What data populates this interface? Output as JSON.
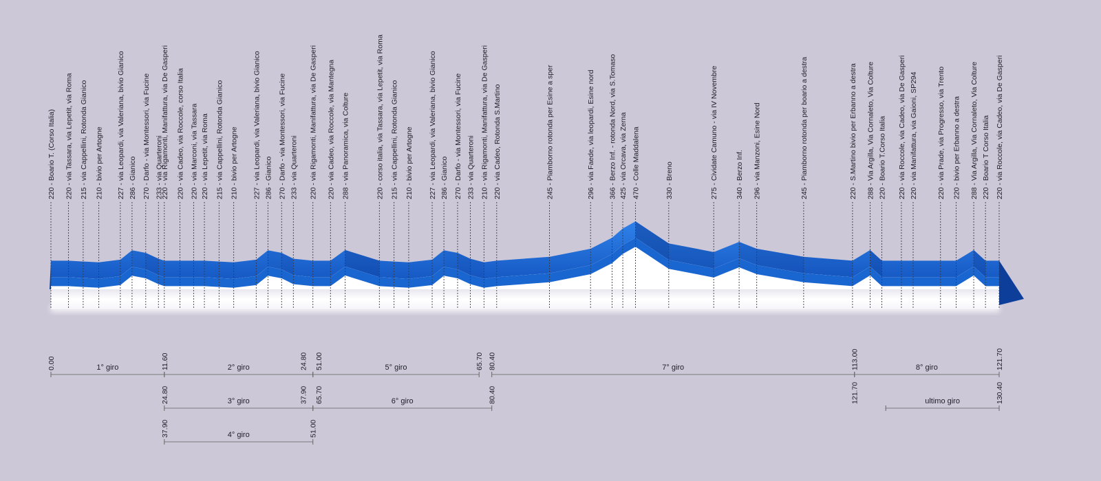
{
  "chart_data": {
    "type": "area",
    "elevation_unit": "m",
    "distance_unit": "km",
    "waypoints": [
      {
        "km": 0.0,
        "alt": 220,
        "label": "220 - Boario T. (Corso Italia)"
      },
      {
        "km": 1.8,
        "alt": 220,
        "label": "220 - via Tassara, via Lepetit, via Roma"
      },
      {
        "km": 3.3,
        "alt": 215,
        "label": "215 - via Cappellini, Rotonda Gianico"
      },
      {
        "km": 4.9,
        "alt": 210,
        "label": "210 - bivio per Artogne"
      },
      {
        "km": 7.1,
        "alt": 227,
        "label": "227 - via Leopardi, via Valeriana, bivio Gianico"
      },
      {
        "km": 8.3,
        "alt": 286,
        "label": "286 - Gianico"
      },
      {
        "km": 9.7,
        "alt": 270,
        "label": "270 - Darfo - via Montessori, via Fucine"
      },
      {
        "km": 11.0,
        "alt": 233,
        "label": "233 - via Quarteroni"
      },
      {
        "km": 11.6,
        "alt": 220,
        "label": "220 - via Rigamonti, Manifattura, via De Gasperi"
      },
      {
        "km": 13.2,
        "alt": 220,
        "label": "220 - via Cadeo, via Roccole, corso Italia"
      },
      {
        "km": 14.6,
        "alt": 220,
        "label": "220 - via Marconi, via Tassara"
      },
      {
        "km": 15.7,
        "alt": 220,
        "label": "220 - via Lepetit, via Roma"
      },
      {
        "km": 17.2,
        "alt": 215,
        "label": "215 - via Cappellini, Rotonda Gianico"
      },
      {
        "km": 18.7,
        "alt": 210,
        "label": "210 - bivio per Artogne"
      },
      {
        "km": 21.0,
        "alt": 227,
        "label": "227 - via Leopardi, via Valeriana, bivio Gianico"
      },
      {
        "km": 22.2,
        "alt": 286,
        "label": "286 - Gianico"
      },
      {
        "km": 23.6,
        "alt": 270,
        "label": "270 - Darfo - via Montessori, via Fucine"
      },
      {
        "km": 24.8,
        "alt": 233,
        "label": "233 - via Quarteroni"
      },
      {
        "km": 26.8,
        "alt": 220,
        "label": "220 - via Rigamonti, Manifattura, via De Gasperi"
      },
      {
        "km": 28.6,
        "alt": 220,
        "label": "220 - via Cadeo, via Roccole, via Mantegna"
      },
      {
        "km": 30.1,
        "alt": 288,
        "label": "288 - via Panoramica, via Colture"
      },
      {
        "km": 33.6,
        "alt": 220,
        "label": "220 - corso italia, via Tassara, via Lepetit, via Roma"
      },
      {
        "km": 35.1,
        "alt": 215,
        "label": "215 - via Cappellini, Rotonda Gianico"
      },
      {
        "km": 36.6,
        "alt": 210,
        "label": "210 - bivio per Artogne"
      },
      {
        "km": 39.0,
        "alt": 227,
        "label": "227 - via Leopardi, via Valeriana, bivio Gianico"
      },
      {
        "km": 40.2,
        "alt": 286,
        "label": "286 - Gianico"
      },
      {
        "km": 41.6,
        "alt": 270,
        "label": "270 - Darfo - via Montessori, via Fucine"
      },
      {
        "km": 42.9,
        "alt": 233,
        "label": "233 - via Quarteroni"
      },
      {
        "km": 44.3,
        "alt": 210,
        "label": "210 - via Rigamonti, Manifattura, via De Gasperi"
      },
      {
        "km": 45.6,
        "alt": 220,
        "label": "220 - via Cadeo, Rotonda S.Martino"
      },
      {
        "km": 51.0,
        "alt": 245,
        "label": "245 - Piamborno rotonda per Esine a sper"
      },
      {
        "km": 55.2,
        "alt": 296,
        "label": "296 - via Faede, via leopardi, Esine nord"
      },
      {
        "km": 57.4,
        "alt": 366,
        "label": "366 - Berzo Inf. - rotonda Nord, via S.Tomaso"
      },
      {
        "km": 58.5,
        "alt": 425,
        "label": "425 - via Orcava, via Zerna"
      },
      {
        "km": 59.8,
        "alt": 470,
        "label": "470 - Colle Maddalena"
      },
      {
        "km": 63.2,
        "alt": 330,
        "label": "330 - Breno"
      },
      {
        "km": 67.8,
        "alt": 275,
        "label": "275 - Cividate Camuno - via IV Novembre"
      },
      {
        "km": 70.4,
        "alt": 340,
        "label": "340 - Berzo Inf."
      },
      {
        "km": 72.2,
        "alt": 296,
        "label": "296 - via Manzoni, Esine Nord"
      },
      {
        "km": 77.0,
        "alt": 245,
        "label": "245 - Piamborno rotonda per boario a destra"
      },
      {
        "km": 82.0,
        "alt": 220,
        "label": "220 - S.Martino bivio per Erbanno a destra"
      },
      {
        "km": 83.8,
        "alt": 288,
        "label": "288 - Via Argilla, Via Cornaleto, Via Colture"
      },
      {
        "km": 85.0,
        "alt": 220,
        "label": "220 - Boario T.Corso Italia"
      },
      {
        "km": 87.0,
        "alt": 220,
        "label": "220 - via Roccole, via Cadeo, via De Gasperi"
      },
      {
        "km": 88.2,
        "alt": 220,
        "label": "220 - via Manifattura, via Gaioni, SP294"
      },
      {
        "km": 91.0,
        "alt": 220,
        "label": "220 - via Prade, via Progresso, via Trento"
      },
      {
        "km": 92.6,
        "alt": 220,
        "label": "220 - bivio per Erbanno a destra"
      },
      {
        "km": 94.4,
        "alt": 288,
        "label": "288 - Via Argilla, Via Cornaleto, Via Colture"
      },
      {
        "km": 95.6,
        "alt": 220,
        "label": "220 - Boario T Corso Italia"
      },
      {
        "km": 97.0,
        "alt": 220,
        "label": "220 - via Roccole, via Cadeo, via De Gasperi"
      }
    ],
    "laps": [
      {
        "name": "1° giro",
        "start": "0.00",
        "end": "11.60",
        "x0": 0.0,
        "x1": 11.6,
        "row": 0
      },
      {
        "name": "2° giro",
        "start": "11.60",
        "end": "24.80",
        "x0": 11.6,
        "x1": 26.8,
        "row": 0
      },
      {
        "name": "5° giro",
        "start": "51.00",
        "end": "65.70",
        "x0": 26.8,
        "x1": 43.8,
        "row": 0
      },
      {
        "name": "7° giro",
        "start": "80.40",
        "end": "113.00",
        "x0": 45.1,
        "x1": 82.2,
        "row": 0
      },
      {
        "name": "8° giro",
        "start": "113.00",
        "end": "121.70",
        "x0": 82.2,
        "x1": 97.0,
        "row": 0
      },
      {
        "name": "3° giro",
        "start": "24.80",
        "end": "37.90",
        "x0": 11.6,
        "x1": 26.8,
        "row": 1
      },
      {
        "name": "6° giro",
        "start": "65.70",
        "end": "80.40",
        "x0": 26.8,
        "x1": 45.1,
        "row": 1
      },
      {
        "name": "ultimo giro",
        "start": "121.70",
        "end": "130.40",
        "x0": 85.4,
        "x1": 97.0,
        "row": 1
      },
      {
        "name": "4° giro",
        "start": "37.90",
        "end": "51.00",
        "x0": 11.6,
        "x1": 26.8,
        "row": 2
      }
    ],
    "km_markers": [
      {
        "text": "0.00",
        "x": 0.0,
        "row": 0
      },
      {
        "text": "11.60",
        "x": 11.6,
        "row": 0
      },
      {
        "text": "24.80",
        "x": 25.8,
        "row": 0
      },
      {
        "text": "51.00",
        "x": 27.4,
        "row": 0
      },
      {
        "text": "65.70",
        "x": 43.8,
        "row": 0
      },
      {
        "text": "80.40",
        "x": 45.1,
        "row": 0
      },
      {
        "text": "113.00",
        "x": 82.2,
        "row": 0
      },
      {
        "text": "121.70",
        "x": 97.0,
        "row": 0
      },
      {
        "text": "24.80",
        "x": 11.6,
        "row": 1
      },
      {
        "text": "37.90",
        "x": 25.8,
        "row": 1
      },
      {
        "text": "65.70",
        "x": 27.4,
        "row": 1
      },
      {
        "text": "80.40",
        "x": 45.1,
        "row": 1
      },
      {
        "text": "121.70",
        "x": 82.2,
        "row": 1
      },
      {
        "text": "130.40",
        "x": 97.0,
        "row": 1
      },
      {
        "text": "37.90",
        "x": 11.6,
        "row": 2
      },
      {
        "text": "51.00",
        "x": 26.8,
        "row": 2
      }
    ],
    "colors": {
      "background": "#cdc8d8",
      "profile_top": "#1f6fd6",
      "profile_front": "#1a66d0",
      "profile_dark": "#0d3f9a",
      "base": "#ffffff"
    }
  }
}
